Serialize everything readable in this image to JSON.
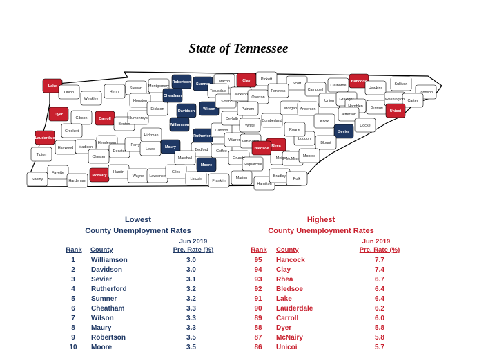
{
  "title": "State of Tennessee",
  "colors": {
    "low": "#1f3864",
    "high": "#c8202e",
    "neutral": "#ffffff",
    "outline": "#000000"
  },
  "map": {
    "counties": [
      {
        "name": "Lake",
        "group": "high"
      },
      {
        "name": "Obion",
        "group": "neutral"
      },
      {
        "name": "Weakley",
        "group": "neutral"
      },
      {
        "name": "Henry",
        "group": "neutral"
      },
      {
        "name": "Stewart",
        "group": "neutral"
      },
      {
        "name": "Montgomery",
        "group": "neutral"
      },
      {
        "name": "Robertson",
        "group": "low"
      },
      {
        "name": "Sumner",
        "group": "low"
      },
      {
        "name": "Macon",
        "group": "neutral"
      },
      {
        "name": "Clay",
        "group": "high"
      },
      {
        "name": "Pickett",
        "group": "neutral"
      },
      {
        "name": "Scott",
        "group": "neutral"
      },
      {
        "name": "Claiborne",
        "group": "neutral"
      },
      {
        "name": "Hancock",
        "group": "high"
      },
      {
        "name": "Hawkins",
        "group": "neutral"
      },
      {
        "name": "Sullivan",
        "group": "neutral"
      },
      {
        "name": "Johnson",
        "group": "neutral"
      },
      {
        "name": "Dyer",
        "group": "high"
      },
      {
        "name": "Gibson",
        "group": "neutral"
      },
      {
        "name": "Carroll",
        "group": "high"
      },
      {
        "name": "Benton",
        "group": "neutral"
      },
      {
        "name": "Houston",
        "group": "neutral"
      },
      {
        "name": "Humphreys",
        "group": "neutral"
      },
      {
        "name": "Dickson",
        "group": "neutral"
      },
      {
        "name": "Cheatham",
        "group": "low"
      },
      {
        "name": "Davidson",
        "group": "low"
      },
      {
        "name": "Wilson",
        "group": "low"
      },
      {
        "name": "Trousdale",
        "group": "neutral"
      },
      {
        "name": "Smith",
        "group": "neutral"
      },
      {
        "name": "Jackson",
        "group": "neutral"
      },
      {
        "name": "Overton",
        "group": "neutral"
      },
      {
        "name": "Fentress",
        "group": "neutral"
      },
      {
        "name": "Campbell",
        "group": "neutral"
      },
      {
        "name": "Union",
        "group": "neutral"
      },
      {
        "name": "Grainger",
        "group": "neutral"
      },
      {
        "name": "Hamblen",
        "group": "neutral"
      },
      {
        "name": "Greene",
        "group": "neutral"
      },
      {
        "name": "Washington",
        "group": "neutral"
      },
      {
        "name": "Carter",
        "group": "neutral"
      },
      {
        "name": "Unicoi",
        "group": "high"
      },
      {
        "name": "Crockett",
        "group": "neutral"
      },
      {
        "name": "Lauderdale",
        "group": "high"
      },
      {
        "name": "Haywood",
        "group": "neutral"
      },
      {
        "name": "Madison",
        "group": "neutral"
      },
      {
        "name": "Henderson",
        "group": "neutral"
      },
      {
        "name": "Decatur",
        "group": "neutral"
      },
      {
        "name": "Perry",
        "group": "neutral"
      },
      {
        "name": "Hickman",
        "group": "neutral"
      },
      {
        "name": "Lewis",
        "group": "neutral"
      },
      {
        "name": "Williamson",
        "group": "low"
      },
      {
        "name": "Maury",
        "group": "low"
      },
      {
        "name": "Rutherford",
        "group": "low"
      },
      {
        "name": "Bedford",
        "group": "neutral"
      },
      {
        "name": "Marshall",
        "group": "neutral"
      },
      {
        "name": "Coffee",
        "group": "neutral"
      },
      {
        "name": "Cannon",
        "group": "neutral"
      },
      {
        "name": "DeKalb",
        "group": "neutral"
      },
      {
        "name": "Putnam",
        "group": "neutral"
      },
      {
        "name": "White",
        "group": "neutral"
      },
      {
        "name": "Warren",
        "group": "neutral"
      },
      {
        "name": "Van Buren",
        "group": "neutral"
      },
      {
        "name": "Cumberland",
        "group": "neutral"
      },
      {
        "name": "Morgan",
        "group": "neutral"
      },
      {
        "name": "Anderson",
        "group": "neutral"
      },
      {
        "name": "Knox",
        "group": "neutral"
      },
      {
        "name": "Jefferson",
        "group": "neutral"
      },
      {
        "name": "Cocke",
        "group": "neutral"
      },
      {
        "name": "Sevier",
        "group": "low"
      },
      {
        "name": "Blount",
        "group": "neutral"
      },
      {
        "name": "Loudon",
        "group": "neutral"
      },
      {
        "name": "Roane",
        "group": "neutral"
      },
      {
        "name": "Rhea",
        "group": "high"
      },
      {
        "name": "Bledsoe",
        "group": "high"
      },
      {
        "name": "Meigs",
        "group": "neutral"
      },
      {
        "name": "McMinn",
        "group": "neutral"
      },
      {
        "name": "Monroe",
        "group": "neutral"
      },
      {
        "name": "Tipton",
        "group": "neutral"
      },
      {
        "name": "Shelby",
        "group": "neutral"
      },
      {
        "name": "Fayette",
        "group": "neutral"
      },
      {
        "name": "Hardeman",
        "group": "neutral"
      },
      {
        "name": "McNairy",
        "group": "high"
      },
      {
        "name": "Chester",
        "group": "neutral"
      },
      {
        "name": "Hardin",
        "group": "neutral"
      },
      {
        "name": "Wayne",
        "group": "neutral"
      },
      {
        "name": "Lawrence",
        "group": "neutral"
      },
      {
        "name": "Giles",
        "group": "neutral"
      },
      {
        "name": "Lincoln",
        "group": "neutral"
      },
      {
        "name": "Moore",
        "group": "low"
      },
      {
        "name": "Franklin",
        "group": "neutral"
      },
      {
        "name": "Grundy",
        "group": "neutral"
      },
      {
        "name": "Sequatchie",
        "group": "neutral"
      },
      {
        "name": "Marion",
        "group": "neutral"
      },
      {
        "name": "Hamilton",
        "group": "neutral"
      },
      {
        "name": "Bradley",
        "group": "neutral"
      },
      {
        "name": "Polk",
        "group": "neutral"
      }
    ]
  },
  "lowest": {
    "heading1": "Lowest",
    "heading2": "County Unemployment Rates",
    "col_rank": "Rank",
    "col_county": "County",
    "col_rate_line1": "Jun 2019",
    "col_rate_line2": "Pre. Rate (%)",
    "rows": [
      {
        "rank": "1",
        "county": "Williamson",
        "rate": "3.0"
      },
      {
        "rank": "2",
        "county": "Davidson",
        "rate": "3.0"
      },
      {
        "rank": "3",
        "county": "Sevier",
        "rate": "3.1"
      },
      {
        "rank": "4",
        "county": "Rutherford",
        "rate": "3.2"
      },
      {
        "rank": "5",
        "county": "Sumner",
        "rate": "3.2"
      },
      {
        "rank": "6",
        "county": "Cheatham",
        "rate": "3.3"
      },
      {
        "rank": "7",
        "county": "Wilson",
        "rate": "3.3"
      },
      {
        "rank": "8",
        "county": "Maury",
        "rate": "3.3"
      },
      {
        "rank": "9",
        "county": "Robertson",
        "rate": "3.5"
      },
      {
        "rank": "10",
        "county": "Moore",
        "rate": "3.5"
      }
    ]
  },
  "highest": {
    "heading1": "Highest",
    "heading2": "County Unemployment Rates",
    "col_rank": "Rank",
    "col_county": "County",
    "col_rate_line1": "Jun 2019",
    "col_rate_line2": "Pre. Rate (%)",
    "rows": [
      {
        "rank": "95",
        "county": "Hancock",
        "rate": "7.7"
      },
      {
        "rank": "94",
        "county": "Clay",
        "rate": "7.4"
      },
      {
        "rank": "93",
        "county": "Rhea",
        "rate": "6.7"
      },
      {
        "rank": "92",
        "county": "Bledsoe",
        "rate": "6.4"
      },
      {
        "rank": "91",
        "county": "Lake",
        "rate": "6.4"
      },
      {
        "rank": "90",
        "county": "Lauderdale",
        "rate": "6.2"
      },
      {
        "rank": "89",
        "county": "Carroll",
        "rate": "6.0"
      },
      {
        "rank": "88",
        "county": "Dyer",
        "rate": "5.8"
      },
      {
        "rank": "87",
        "county": "McNairy",
        "rate": "5.8"
      },
      {
        "rank": "86",
        "county": "Unicoi",
        "rate": "5.7"
      }
    ]
  }
}
